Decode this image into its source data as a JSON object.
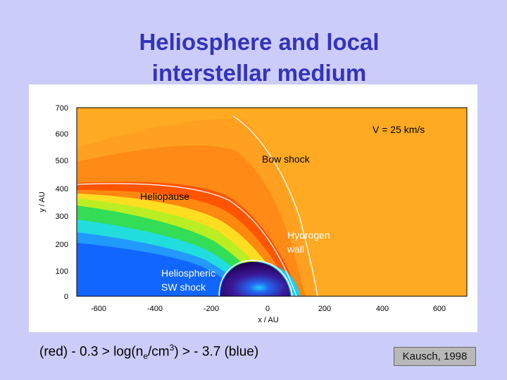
{
  "title": {
    "line1": "Heliosphere and local",
    "line2": "interstellar medium"
  },
  "plot": {
    "ylabel": "y / AU",
    "xlabel": "x / AU",
    "yticks": [
      "700",
      "600",
      "500",
      "400",
      "300",
      "200",
      "100",
      "0"
    ],
    "xticks": [
      "-600",
      "-400",
      "-200",
      "0",
      "200",
      "400",
      "600"
    ],
    "labels": {
      "velocity": "V = 25 km/s",
      "bow_shock": "Bow shock",
      "heliopause": "Heliopause",
      "hydrogen_wall_1": "Hydrogen",
      "hydrogen_wall_2": "wall",
      "sw_shock_1": "Heliospheric",
      "sw_shock_2": "SW shock"
    },
    "colors": {
      "background": "#ffaa22",
      "red_band": "#ee4400",
      "green": "#22dd66",
      "cyan": "#22dddd",
      "blue": "#1166ff",
      "dark_core": "#330066"
    }
  },
  "caption": {
    "prefix": "(red)  - 0.3 > log(n",
    "sub": "e",
    "mid": "/cm",
    "sup": "3",
    "suffix": ") > - 3.7  (blue)"
  },
  "credit": "Kausch, 1998"
}
